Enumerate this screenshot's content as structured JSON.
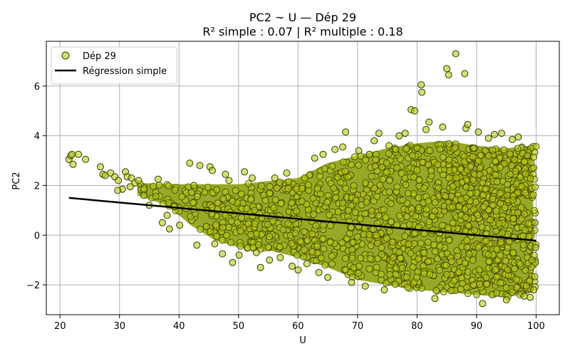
{
  "chart_data": {
    "type": "scatter",
    "title": "PC2 ~ U — Dép 29",
    "subtitle": "R² simple : 0.07 | R² multiple : 0.18",
    "xlabel": "U",
    "ylabel": "PC2",
    "xlim": [
      17.7,
      103.9
    ],
    "ylim": [
      -3.2,
      7.8
    ],
    "xticks": [
      20,
      30,
      40,
      50,
      60,
      70,
      80,
      90,
      100
    ],
    "yticks": [
      -2,
      0,
      2,
      4,
      6
    ],
    "grid": true,
    "legend_position": "top-left",
    "series": [
      {
        "name": "Dép 29",
        "kind": "scatter",
        "color": "#b5cc18",
        "edge_color": "#3a3a00",
        "points": [
          [
            21.5,
            3.05
          ],
          [
            21.8,
            3.2
          ],
          [
            22.0,
            3.25
          ],
          [
            22.2,
            2.85
          ],
          [
            23.1,
            3.25
          ],
          [
            24.3,
            3.05
          ],
          [
            26.8,
            2.75
          ],
          [
            27.2,
            2.45
          ],
          [
            27.6,
            2.4
          ],
          [
            28.5,
            2.5
          ],
          [
            29.2,
            2.35
          ],
          [
            29.8,
            2.2
          ],
          [
            30.5,
            1.85
          ],
          [
            31.0,
            2.55
          ],
          [
            31.3,
            2.35
          ],
          [
            32.0,
            2.3
          ],
          [
            32.6,
            2.1
          ],
          [
            33.2,
            2.2
          ],
          [
            29.7,
            1.8
          ],
          [
            31.8,
            1.95
          ],
          [
            34.1,
            1.6
          ],
          [
            35.0,
            1.2
          ],
          [
            36.5,
            2.25
          ],
          [
            37.2,
            0.5
          ],
          [
            38.0,
            0.8
          ],
          [
            38.4,
            0.25
          ],
          [
            39.2,
            1.15
          ],
          [
            40.1,
            0.4
          ],
          [
            41.8,
            2.9
          ],
          [
            42.5,
            2.0
          ],
          [
            43.0,
            -0.4
          ],
          [
            43.5,
            2.8
          ],
          [
            44.6,
            0.35
          ],
          [
            45.2,
            2.75
          ],
          [
            45.6,
            2.6
          ],
          [
            46.0,
            -0.35
          ],
          [
            47.3,
            -0.75
          ],
          [
            47.8,
            2.45
          ],
          [
            48.4,
            2.2
          ],
          [
            49.0,
            -1.1
          ],
          [
            50.1,
            -0.8
          ],
          [
            51.0,
            2.55
          ],
          [
            52.3,
            2.3
          ],
          [
            53.0,
            -0.7
          ],
          [
            53.7,
            -1.3
          ],
          [
            55.2,
            -1.0
          ],
          [
            56.1,
            2.3
          ],
          [
            57.0,
            -0.9
          ],
          [
            58.1,
            2.5
          ],
          [
            59.0,
            -1.25
          ],
          [
            60.0,
            -1.4
          ],
          [
            61.5,
            -1.15
          ],
          [
            62.8,
            3.1
          ],
          [
            63.5,
            -1.5
          ],
          [
            64.2,
            3.25
          ],
          [
            65.0,
            -1.7
          ],
          [
            66.2,
            3.45
          ],
          [
            67.5,
            3.55
          ],
          [
            68.0,
            4.15
          ],
          [
            69.0,
            -1.9
          ],
          [
            70.2,
            3.4
          ],
          [
            71.3,
            -2.05
          ],
          [
            72.0,
            3.25
          ],
          [
            72.8,
            3.8
          ],
          [
            73.6,
            4.1
          ],
          [
            74.5,
            -2.2
          ],
          [
            75.3,
            3.6
          ],
          [
            76.4,
            3.45
          ],
          [
            77.0,
            4.0
          ],
          [
            78.0,
            4.1
          ],
          [
            79.0,
            5.05
          ],
          [
            79.6,
            5.0
          ],
          [
            80.0,
            3.5
          ],
          [
            80.7,
            6.05
          ],
          [
            80.8,
            5.75
          ],
          [
            81.5,
            4.25
          ],
          [
            82.0,
            4.55
          ],
          [
            83.0,
            -2.55
          ],
          [
            84.3,
            4.35
          ],
          [
            85.0,
            6.7
          ],
          [
            85.3,
            6.45
          ],
          [
            86.5,
            7.3
          ],
          [
            88.0,
            6.5
          ],
          [
            88.2,
            4.3
          ],
          [
            88.5,
            4.45
          ],
          [
            89.5,
            3.5
          ],
          [
            90.3,
            4.15
          ],
          [
            91.0,
            -2.75
          ],
          [
            92.0,
            3.9
          ],
          [
            93.0,
            4.05
          ],
          [
            94.2,
            4.1
          ],
          [
            95.0,
            -2.6
          ],
          [
            96.0,
            3.85
          ],
          [
            97.0,
            3.95
          ],
          [
            98.0,
            -2.45
          ],
          [
            98.5,
            3.2
          ],
          [
            99.0,
            -2.5
          ],
          [
            99.6,
            -2.2
          ],
          [
            99.8,
            0.5
          ],
          [
            99.9,
            -0.5
          ]
        ],
        "dense_band": {
          "description_x": [
            33,
            100
          ],
          "upper_envelope": [
            [
              33,
              2.1
            ],
            [
              40,
              2.05
            ],
            [
              50,
              2.05
            ],
            [
              60,
              2.3
            ],
            [
              65,
              2.9
            ],
            [
              70,
              3.2
            ],
            [
              75,
              3.5
            ],
            [
              80,
              3.7
            ],
            [
              85,
              3.8
            ],
            [
              90,
              3.6
            ],
            [
              95,
              3.5
            ],
            [
              99.5,
              3.6
            ]
          ],
          "lower_envelope": [
            [
              33,
              1.6
            ],
            [
              38,
              1.2
            ],
            [
              42,
              0.4
            ],
            [
              46,
              -0.2
            ],
            [
              50,
              -0.5
            ],
            [
              55,
              -0.6
            ],
            [
              60,
              -0.9
            ],
            [
              65,
              -1.3
            ],
            [
              70,
              -1.8
            ],
            [
              75,
              -2.0
            ],
            [
              80,
              -2.2
            ],
            [
              85,
              -2.3
            ],
            [
              90,
              -2.4
            ],
            [
              95,
              -2.5
            ],
            [
              99.5,
              -2.3
            ]
          ]
        }
      },
      {
        "name": "Régression simple",
        "kind": "line",
        "color": "#000000",
        "x": [
          21.5,
          100.0
        ],
        "y": [
          1.5,
          -0.22
        ]
      }
    ]
  }
}
